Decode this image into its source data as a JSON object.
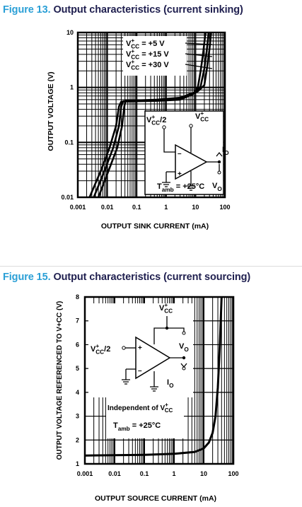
{
  "figures": [
    {
      "number": "Figure 13.",
      "title": "Output characteristics (current sinking)"
    },
    {
      "number": "Figure 15.",
      "title": "Output characteristics (current sourcing)"
    }
  ],
  "chart_data": [
    {
      "type": "line",
      "xlabel": "OUTPUT SINK CURRENT (mA)",
      "ylabel": "OUTPUT VOLTAGE (V)",
      "xscale": "log",
      "yscale": "log",
      "xlim": [
        0.001,
        100
      ],
      "ylim": [
        0.01,
        10
      ],
      "xticks": [
        "0.001",
        "0.01",
        "0.1",
        "1",
        "10",
        "100"
      ],
      "yticks": [
        "0.01",
        "0.1",
        "1",
        "10"
      ],
      "grid": true,
      "series": [
        {
          "name": "V+CC = +5 V",
          "points": [
            [
              0.0025,
              0.01
            ],
            [
              0.006,
              0.03
            ],
            [
              0.012,
              0.08
            ],
            [
              0.02,
              0.2
            ],
            [
              0.025,
              0.45
            ],
            [
              0.03,
              0.55
            ],
            [
              0.1,
              0.56
            ],
            [
              0.5,
              0.57
            ],
            [
              3,
              0.6
            ],
            [
              8,
              0.75
            ],
            [
              12,
              1.0
            ],
            [
              15,
              2
            ],
            [
              18,
              4
            ],
            [
              22,
              10
            ]
          ]
        },
        {
          "name": "V+CC = +15 V",
          "points": [
            [
              0.0035,
              0.01
            ],
            [
              0.008,
              0.03
            ],
            [
              0.016,
              0.08
            ],
            [
              0.025,
              0.2
            ],
            [
              0.03,
              0.45
            ],
            [
              0.035,
              0.56
            ],
            [
              0.1,
              0.57
            ],
            [
              0.5,
              0.58
            ],
            [
              3,
              0.62
            ],
            [
              10,
              0.8
            ],
            [
              15,
              1.05
            ],
            [
              20,
              2.2
            ],
            [
              24,
              4.5
            ],
            [
              28,
              10
            ]
          ]
        },
        {
          "name": "V+CC = +30 V",
          "points": [
            [
              0.005,
              0.01
            ],
            [
              0.011,
              0.03
            ],
            [
              0.022,
              0.08
            ],
            [
              0.032,
              0.2
            ],
            [
              0.038,
              0.45
            ],
            [
              0.042,
              0.57
            ],
            [
              0.1,
              0.58
            ],
            [
              0.5,
              0.6
            ],
            [
              3,
              0.65
            ],
            [
              12,
              0.85
            ],
            [
              20,
              1.1
            ],
            [
              25,
              2.4
            ],
            [
              30,
              5
            ],
            [
              34,
              10
            ]
          ]
        }
      ],
      "annotations": {
        "vcc_half": "V+CC/2",
        "vcc": "V+CC",
        "io": "IO",
        "vo": "VO",
        "tamb": "Tamb = +25°C"
      }
    },
    {
      "type": "line",
      "xlabel": "OUTPUT SOURCE CURRENT (mA)",
      "ylabel": "OUTPUT VOLTAGE REFERENCED TO V+CC (V)",
      "xscale": "log",
      "xlim": [
        0.001,
        100
      ],
      "ylim": [
        1,
        8
      ],
      "xticks": [
        "0.001",
        "0.01",
        "0.1",
        "1",
        "10",
        "100"
      ],
      "yticks": [
        "1",
        "2",
        "3",
        "4",
        "5",
        "6",
        "7",
        "8"
      ],
      "grid": true,
      "series": [
        {
          "name": "Independent of V+CC",
          "points": [
            [
              0.001,
              1.35
            ],
            [
              0.1,
              1.38
            ],
            [
              1,
              1.42
            ],
            [
              5,
              1.5
            ],
            [
              10,
              1.65
            ],
            [
              15,
              1.9
            ],
            [
              20,
              2.3
            ],
            [
              25,
              3.0
            ],
            [
              30,
              4.2
            ],
            [
              35,
              6.0
            ],
            [
              40,
              8.0
            ]
          ]
        }
      ],
      "annotations": {
        "vcc_half": "V+CC/2",
        "vcc": "V+CC",
        "vo": "VO",
        "io": "IO",
        "independent": "Independent of V+CC",
        "tamb": "Tamb = +25°C"
      }
    }
  ]
}
